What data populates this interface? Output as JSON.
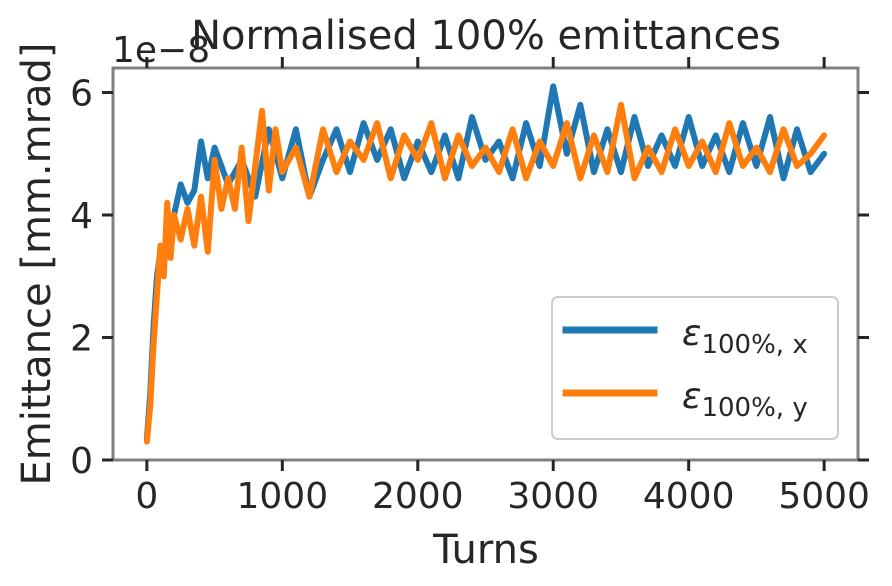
{
  "chart_data": {
    "type": "line",
    "title": "Normalised 100% emittances",
    "xlabel": "Turns",
    "ylabel": "Emittance [mm.mrad]",
    "offset_text": "1e−8",
    "xlim": [
      -250,
      5250
    ],
    "ylim": [
      0,
      6.4
    ],
    "xticks": [
      0,
      1000,
      2000,
      3000,
      4000,
      5000
    ],
    "xtick_labels": [
      "0",
      "1000",
      "2000",
      "3000",
      "4000",
      "5000"
    ],
    "yticks": [
      0,
      2,
      4,
      6
    ],
    "ytick_labels": [
      "0",
      "2",
      "4",
      "6"
    ],
    "grid": false,
    "legend_position": "lower-right",
    "series": [
      {
        "name": "ε100%, x",
        "legend_main": "ε",
        "legend_sub": "100%, x",
        "color": "#1f77b4",
        "x": [
          0,
          25,
          50,
          75,
          100,
          150,
          200,
          250,
          300,
          350,
          400,
          450,
          500,
          600,
          700,
          800,
          900,
          1000,
          1100,
          1200,
          1300,
          1400,
          1500,
          1600,
          1700,
          1800,
          1900,
          2000,
          2100,
          2200,
          2300,
          2400,
          2500,
          2600,
          2700,
          2800,
          2900,
          3000,
          3100,
          3200,
          3300,
          3400,
          3500,
          3600,
          3700,
          3800,
          3900,
          4000,
          4100,
          4200,
          4300,
          4400,
          4500,
          4600,
          4700,
          4800,
          4900,
          5000
        ],
        "y": [
          0.35,
          1.1,
          2.2,
          3.0,
          3.4,
          3.5,
          4.0,
          4.5,
          4.2,
          4.4,
          5.2,
          4.6,
          5.1,
          4.5,
          4.9,
          4.3,
          5.4,
          4.6,
          5.4,
          4.3,
          4.9,
          5.4,
          4.7,
          5.5,
          4.9,
          5.4,
          4.6,
          5.2,
          4.7,
          5.3,
          4.6,
          5.6,
          4.9,
          5.2,
          4.6,
          5.5,
          4.8,
          6.1,
          5.0,
          5.8,
          4.7,
          5.4,
          4.7,
          5.6,
          4.8,
          5.3,
          4.8,
          5.6,
          4.8,
          5.3,
          4.7,
          5.5,
          4.8,
          5.6,
          4.6,
          5.4,
          4.7,
          5.0
        ]
      },
      {
        "name": "ε100%, y",
        "legend_main": "ε",
        "legend_sub": "100%, y",
        "color": "#ff7f0e",
        "x": [
          0,
          25,
          50,
          75,
          100,
          125,
          150,
          175,
          200,
          250,
          300,
          350,
          400,
          450,
          500,
          550,
          600,
          650,
          700,
          750,
          800,
          850,
          900,
          950,
          1000,
          1100,
          1200,
          1300,
          1400,
          1500,
          1600,
          1700,
          1800,
          1900,
          2000,
          2100,
          2200,
          2300,
          2400,
          2500,
          2600,
          2700,
          2800,
          2900,
          3000,
          3100,
          3200,
          3300,
          3400,
          3500,
          3600,
          3700,
          3800,
          3900,
          4000,
          4100,
          4200,
          4300,
          4400,
          4500,
          4600,
          4700,
          4800,
          4900,
          5000
        ],
        "y": [
          0.3,
          0.9,
          1.9,
          2.7,
          3.5,
          3.0,
          4.2,
          3.3,
          4.0,
          3.6,
          4.1,
          3.5,
          4.3,
          3.4,
          4.9,
          4.1,
          4.6,
          4.1,
          5.1,
          3.9,
          4.8,
          5.7,
          4.4,
          5.4,
          4.7,
          5.1,
          4.3,
          5.4,
          4.7,
          5.2,
          4.9,
          5.5,
          4.6,
          5.3,
          4.9,
          5.5,
          4.6,
          5.3,
          4.8,
          5.1,
          4.7,
          5.4,
          4.6,
          5.2,
          4.8,
          5.5,
          4.6,
          5.3,
          4.7,
          5.8,
          4.6,
          5.1,
          4.7,
          5.4,
          4.8,
          5.2,
          4.7,
          5.5,
          4.8,
          5.1,
          4.7,
          5.4,
          4.8,
          5.0,
          5.3
        ]
      }
    ]
  }
}
